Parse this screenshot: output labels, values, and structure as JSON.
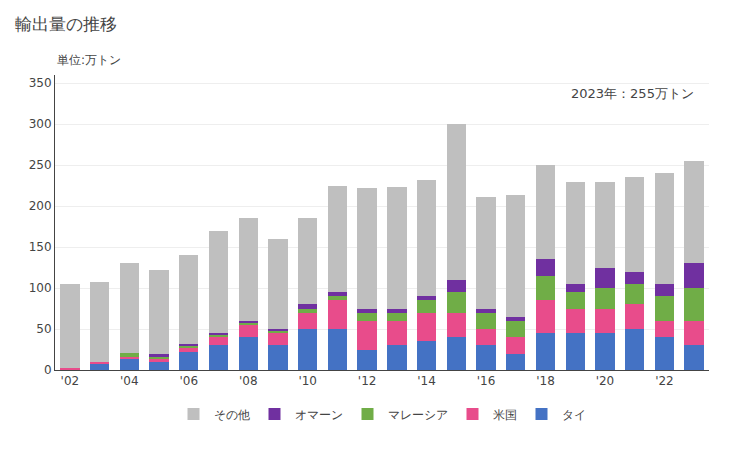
{
  "chart_data": {
    "type": "bar",
    "title": "輸出量の推移",
    "ylabel": "単位:万トン",
    "annotations": [
      "2023年：255万トン"
    ],
    "categories": [
      "'02",
      null,
      "'04",
      null,
      "'06",
      null,
      "'08",
      null,
      "'10",
      null,
      "'12",
      null,
      "'14",
      null,
      "'16",
      null,
      "'18",
      null,
      "'20",
      null,
      "'22",
      null
    ],
    "series": [
      {
        "name": "タイ",
        "color": "#4472c4",
        "values": [
          1,
          8,
          13,
          10,
          22,
          30,
          40,
          30,
          50,
          50,
          25,
          30,
          35,
          40,
          30,
          20,
          45,
          45,
          45,
          50,
          40,
          30
        ]
      },
      {
        "name": "米国",
        "color": "#e84c8b",
        "values": [
          1,
          2,
          3,
          4,
          5,
          10,
          15,
          15,
          20,
          35,
          35,
          30,
          35,
          30,
          20,
          20,
          40,
          30,
          30,
          30,
          20,
          30
        ]
      },
      {
        "name": "マレーシア",
        "color": "#70ad47",
        "values": [
          0,
          0,
          5,
          3,
          3,
          3,
          3,
          3,
          5,
          5,
          10,
          10,
          15,
          25,
          20,
          20,
          30,
          20,
          25,
          25,
          30,
          40
        ]
      },
      {
        "name": "オマーン",
        "color": "#7030a0",
        "values": [
          0,
          0,
          0,
          2,
          2,
          2,
          2,
          2,
          5,
          5,
          5,
          5,
          5,
          15,
          5,
          5,
          20,
          10,
          25,
          15,
          15,
          30
        ]
      },
      {
        "name": "その他",
        "color": "#bfbfbf",
        "values": [
          103,
          97,
          110,
          103,
          108,
          125,
          125,
          110,
          105,
          130,
          147,
          148,
          142,
          190,
          136,
          148,
          115,
          125,
          105,
          115,
          135,
          125
        ]
      }
    ],
    "stacked": true,
    "ylim": [
      0,
      360
    ],
    "yticks": [
      0,
      50,
      100,
      150,
      200,
      250,
      300,
      350
    ],
    "grid": true,
    "legend": "bottom"
  }
}
